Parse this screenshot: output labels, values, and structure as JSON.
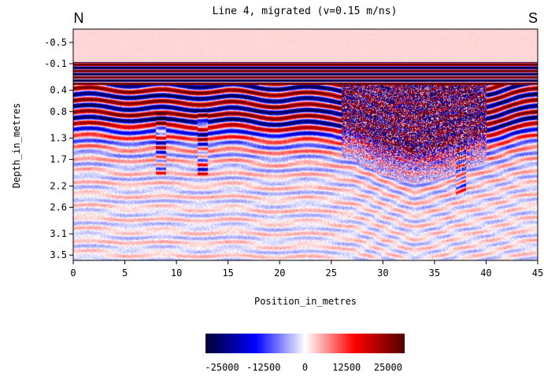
{
  "chart_data": {
    "type": "heatmap",
    "title": "Line 4, migrated (v=0.15 m/ns)",
    "xlabel": "Position_in_metres",
    "ylabel": "Depth_in_metres",
    "left_marker": "N",
    "right_marker": "S",
    "xlim": [
      0,
      45
    ],
    "x_ticks": [
      "0",
      "5",
      "10",
      "15",
      "20",
      "25",
      "30",
      "35",
      "40",
      "45"
    ],
    "ylim": [
      -0.75,
      3.6
    ],
    "y_ticks": [
      "-0.5",
      "-0.1",
      "0.4",
      "0.8",
      "1.3",
      "1.7",
      "2.2",
      "2.6",
      "3.1",
      "3.5"
    ],
    "y_tick_values": [
      -0.5,
      -0.1,
      0.4,
      0.8,
      1.3,
      1.7,
      2.2,
      2.6,
      3.1,
      3.5
    ],
    "colormap": {
      "labels": [
        "-25000",
        "-12500",
        "0",
        "12500",
        "25000"
      ],
      "values": [
        -25000,
        -12500,
        0,
        12500,
        25000
      ],
      "range": [
        -30000,
        30000
      ],
      "stops": [
        "#000033",
        "#0000ff",
        "#ffffff",
        "#ff0000",
        "#550000"
      ]
    },
    "reflectors": {
      "air_ground_band_depth": [
        -0.12,
        0.3
      ],
      "main_reflector_depth": [
        [
          0,
          0.75
        ],
        [
          5,
          0.78
        ],
        [
          10,
          0.8
        ],
        [
          15,
          0.8
        ],
        [
          20,
          0.85
        ],
        [
          25,
          0.85
        ],
        [
          27,
          0.9
        ],
        [
          30,
          1.2
        ],
        [
          33,
          1.35
        ],
        [
          36,
          1.25
        ],
        [
          40,
          0.95
        ],
        [
          45,
          0.75
        ]
      ],
      "diffraction_positions": [
        8.5,
        12.5,
        37.5
      ]
    },
    "grid": false
  }
}
